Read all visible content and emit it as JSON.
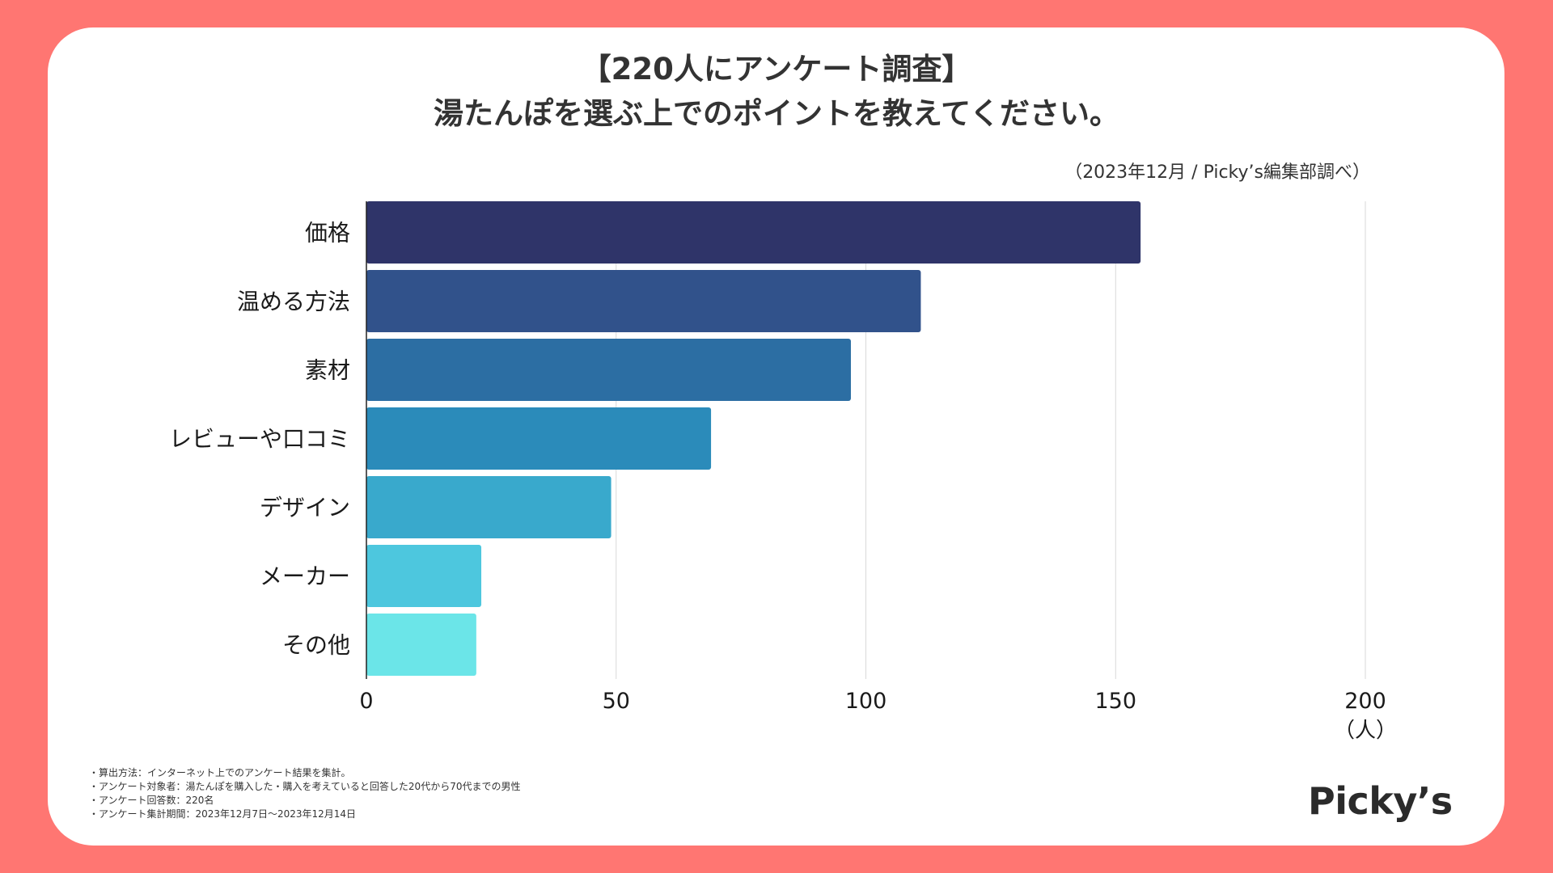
{
  "title": {
    "line1": "【220人にアンケート調査】",
    "line2": "湯たんぽを選ぶ上でのポイントを教えてください。"
  },
  "source": "（2023年12月 / Picky’s編集部調べ）",
  "chart_data": {
    "type": "bar",
    "orientation": "horizontal",
    "categories": [
      "価格",
      "温める方法",
      "素材",
      "レビューや口コミ",
      "デザイン",
      "メーカー",
      "その他"
    ],
    "values": [
      155,
      111,
      97,
      69,
      49,
      23,
      22
    ],
    "colors": [
      "#2F3469",
      "#31528B",
      "#2C6EA3",
      "#2B8BBA",
      "#39A9CC",
      "#4DC7DE",
      "#6BE5E8"
    ],
    "xlim": [
      0,
      200
    ],
    "xticks": [
      "0",
      "50",
      "100",
      "150",
      "200"
    ],
    "xunit": "（人）",
    "grid": true
  },
  "notes": [
    "・算出方法：インターネット上でのアンケート結果を集計。",
    "・アンケート対象者：湯たんぽを購入した・購入を考えていると回答した20代から70代までの男性",
    "・アンケート回答数：220名",
    "・アンケート集計期間：2023年12月7日〜2023年12月14日"
  ],
  "logo": "Picky’s",
  "colors": {
    "background": "#FF7672",
    "card": "#FFFFFF",
    "text": "#333333",
    "grid": "#D9D9D9"
  }
}
